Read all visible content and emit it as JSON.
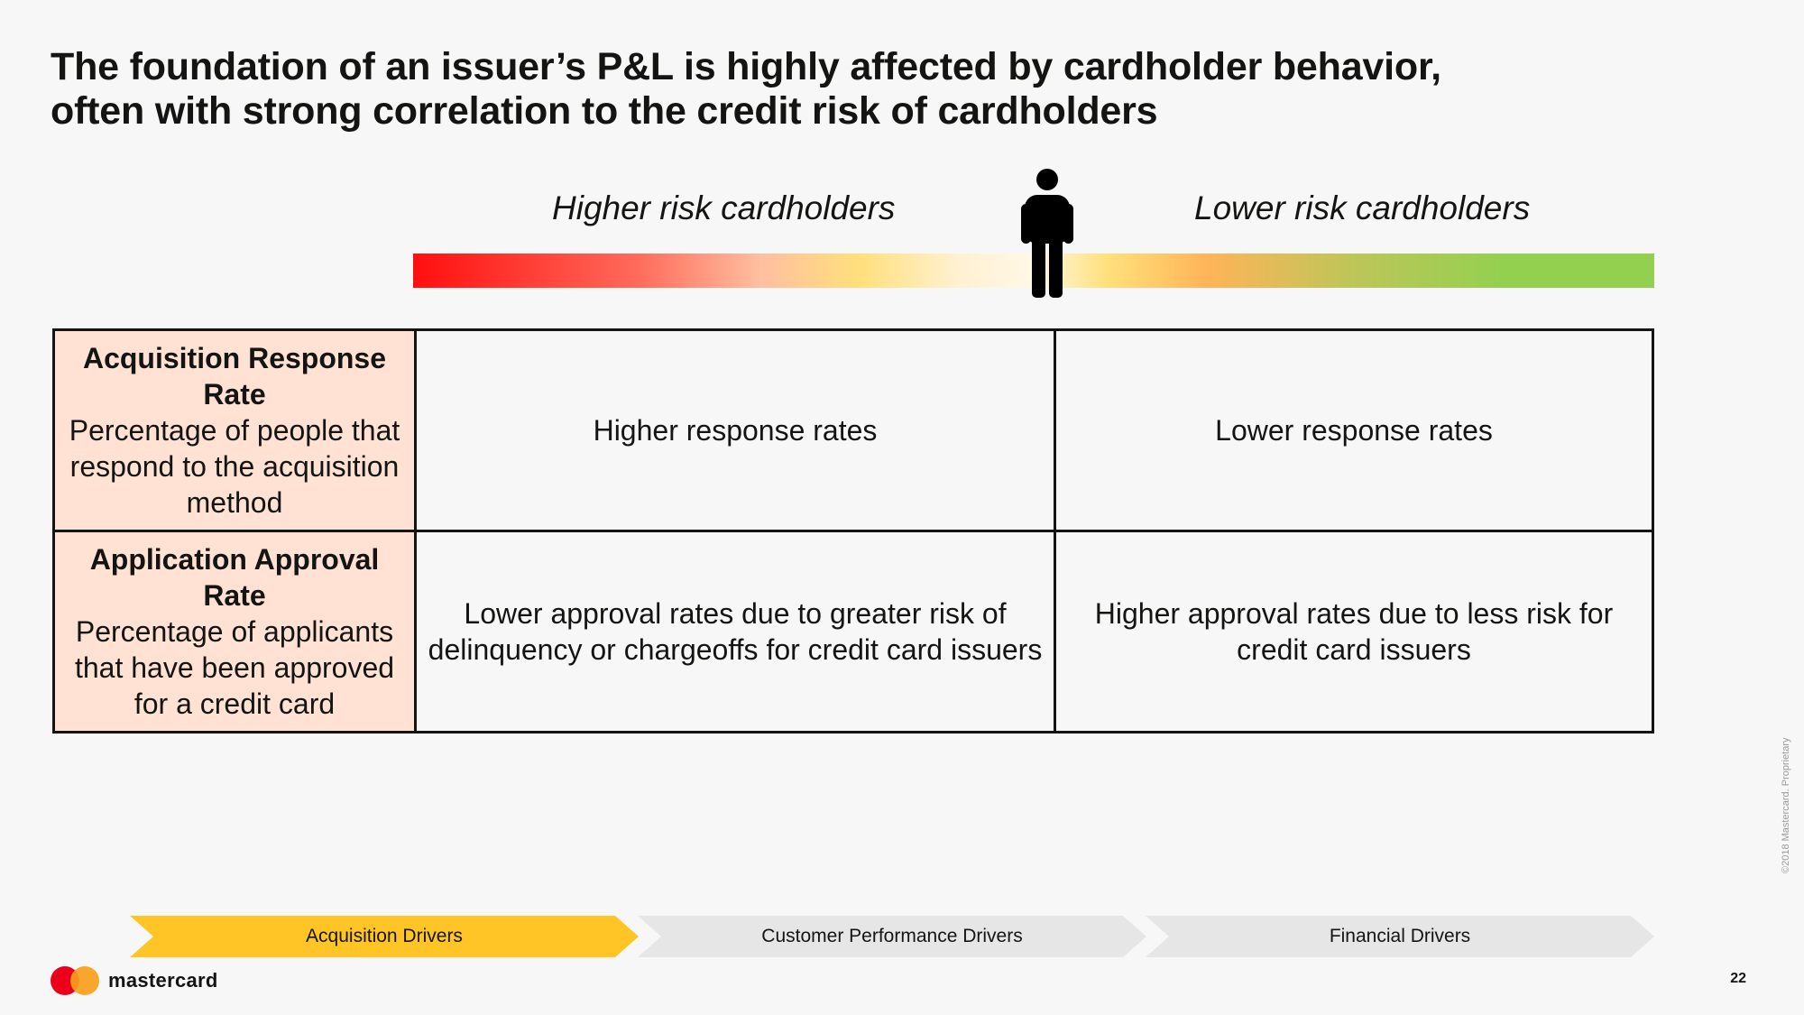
{
  "title": {
    "line1": "The foundation of an issuer’s P&L is highly affected by cardholder behavior,",
    "line2": "often with strong correlation to the credit risk of cardholders"
  },
  "risk_scale": {
    "higher_label": "Higher risk cardholders",
    "lower_label": "Lower risk cardholders",
    "icon": "person-icon",
    "colors": [
      "#ff0f0f",
      "#ffe07c",
      "#93d050"
    ]
  },
  "table": {
    "rows": [
      {
        "metric": "Acquisition Response Rate",
        "description": "Percentage of people that respond to the acquisition method",
        "higher_risk": "Higher response rates",
        "lower_risk": "Lower response rates"
      },
      {
        "metric": "Application Approval Rate",
        "description": "Percentage of applicants that have been approved for a credit card",
        "higher_risk": "Lower approval rates due to greater risk of delinquency or chargeoffs for credit card issuers",
        "lower_risk": "Higher approval rates due to less risk for credit card issuers"
      }
    ]
  },
  "navigation": {
    "chevrons": [
      {
        "label": "Acquisition Drivers",
        "active": true
      },
      {
        "label": "Customer Performance Drivers",
        "active": false
      },
      {
        "label": "Financial Drivers",
        "active": false
      }
    ],
    "active_color": "#ffc526",
    "inactive_color": "#e6e6e6"
  },
  "footer": {
    "logo_text": "mastercard",
    "page_number": "22",
    "copyright": "©2018 Mastercard. Proprietary"
  }
}
